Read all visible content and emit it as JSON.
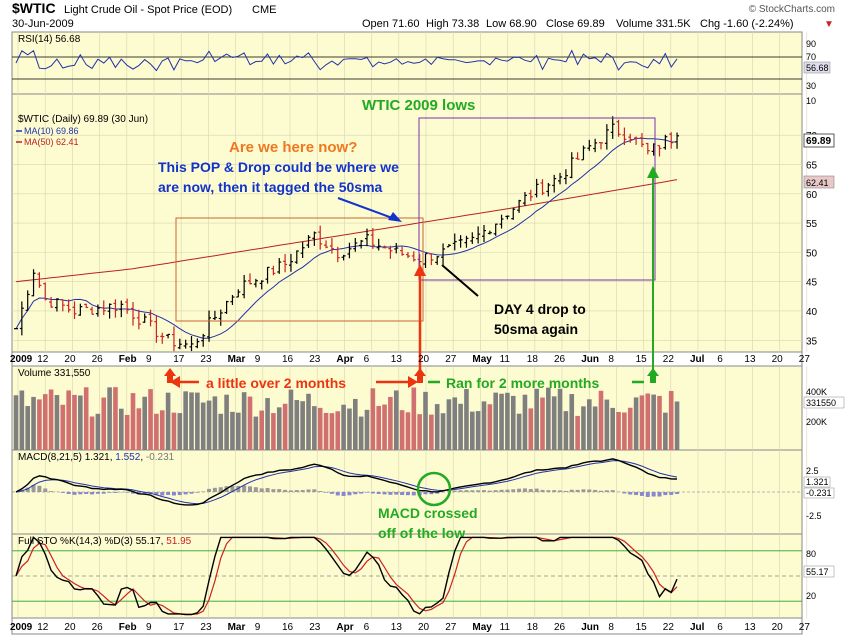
{
  "header": {
    "symbol": "$WTIC",
    "name": "Light Crude Oil - Spot Price (EOD)",
    "exchange": "CME",
    "date": "30-Jun-2009",
    "open": "Open 71.60",
    "high": "High 73.38",
    "low": "Low 68.90",
    "close": "Close 69.89",
    "volume": "Volume 331.5K",
    "chg": "Chg -1.60 (-2.24%)",
    "chg_arrow": "▼",
    "watermark": "© StockCharts.com"
  },
  "rsi": {
    "label": "RSI(14) 56.68",
    "last": "56.68",
    "ticks": [
      "90",
      "70",
      "30",
      "10"
    ]
  },
  "price": {
    "legend_main": "$WTIC (Daily) 69.89 (30 Jun)",
    "legend_ma10": "MA(10) 69.86",
    "legend_ma50": "MA(50) 62.41",
    "last_price": "69.89",
    "last_ma50": "62.41",
    "ticks": [
      "70",
      "65",
      "60",
      "55",
      "50",
      "45",
      "40",
      "35"
    ]
  },
  "volume": {
    "label": "Volume 331,550",
    "last": "331550",
    "ticks": [
      "400K",
      "300K",
      "200K"
    ]
  },
  "macd": {
    "label_prefix": "MACD(8,21,5)",
    "val1": "1.321",
    "val2": "1.552",
    "val3": "-0.231",
    "last1": "1.321",
    "last3": "-0.231",
    "ticks": [
      "2.5",
      "0.0",
      "-2.5"
    ]
  },
  "sto": {
    "label_prefix": "Full STO %K(14,3) %D(3)",
    "k": "55.17",
    "d": "51.95",
    "last": "55.17",
    "ticks": [
      "80",
      "20"
    ]
  },
  "xaxis": {
    "labels": [
      "2009",
      "12",
      "20",
      "26",
      "Feb",
      "9",
      "17",
      "23",
      "Mar",
      "9",
      "16",
      "23",
      "Apr",
      "6",
      "13",
      "20",
      "27",
      "May",
      "11",
      "18",
      "26",
      "Jun",
      "8",
      "15",
      "22",
      "Jul",
      "6",
      "13",
      "20",
      "27"
    ]
  },
  "annotations": {
    "title": "WTIC 2009 lows",
    "question": "Are we here now?",
    "pop_drop": "This POP & Drop could be where we are now, then it tagged the 50sma",
    "day4": "DAY 4 drop to 50sma again",
    "over2": "a little over 2 months",
    "ran2": "Ran for 2 more months",
    "macd_note": "MACD crossed off of the low"
  },
  "colors": {
    "panel_bg": "#fdfbd0",
    "up": "#000000",
    "down": "#cc2222",
    "ma10": "#2233aa",
    "ma50": "#bb2222",
    "vol_up": "#7f7f7f",
    "vol_down": "#d07070",
    "annot_orange": "#f07820",
    "annot_blue": "#1133cc",
    "annot_green": "#22aa22",
    "arrow_red": "#ee3311"
  },
  "chart_data": {
    "type": "candlestick",
    "title": "$WTIC Light Crude Oil - Spot Price (EOD)",
    "period": "Jan 2009 - 30 Jun 2009 (daily)",
    "ohlc_last": {
      "open": 71.6,
      "high": 73.38,
      "low": 68.9,
      "close": 69.89
    },
    "price_range": [
      33,
      76
    ],
    "close_waypoints": [
      [
        0,
        37
      ],
      [
        3,
        47
      ],
      [
        5,
        42
      ],
      [
        10,
        40
      ],
      [
        18,
        41
      ],
      [
        22,
        38
      ],
      [
        26,
        35
      ],
      [
        30,
        34
      ],
      [
        34,
        39
      ],
      [
        38,
        44
      ],
      [
        42,
        46
      ],
      [
        46,
        48
      ],
      [
        51,
        53
      ],
      [
        55,
        50
      ],
      [
        60,
        52
      ],
      [
        65,
        50
      ],
      [
        69,
        49
      ],
      [
        73,
        50
      ],
      [
        78,
        52
      ],
      [
        83,
        56
      ],
      [
        88,
        60
      ],
      [
        93,
        63
      ],
      [
        98,
        68
      ],
      [
        102,
        71
      ],
      [
        105,
        70
      ],
      [
        108,
        67
      ],
      [
        111,
        69
      ],
      [
        113,
        69.89
      ]
    ],
    "ma10_last": 69.86,
    "ma50_last": 62.41,
    "volume_last": 331550,
    "rsi_last": 56.68,
    "macd": {
      "macd": 1.321,
      "signal": 1.552,
      "histogram": -0.231
    },
    "stochastic": {
      "k": 55.17,
      "d": 51.95
    },
    "rsi_levels": [
      70,
      30
    ],
    "sto_levels": [
      80,
      20
    ]
  }
}
